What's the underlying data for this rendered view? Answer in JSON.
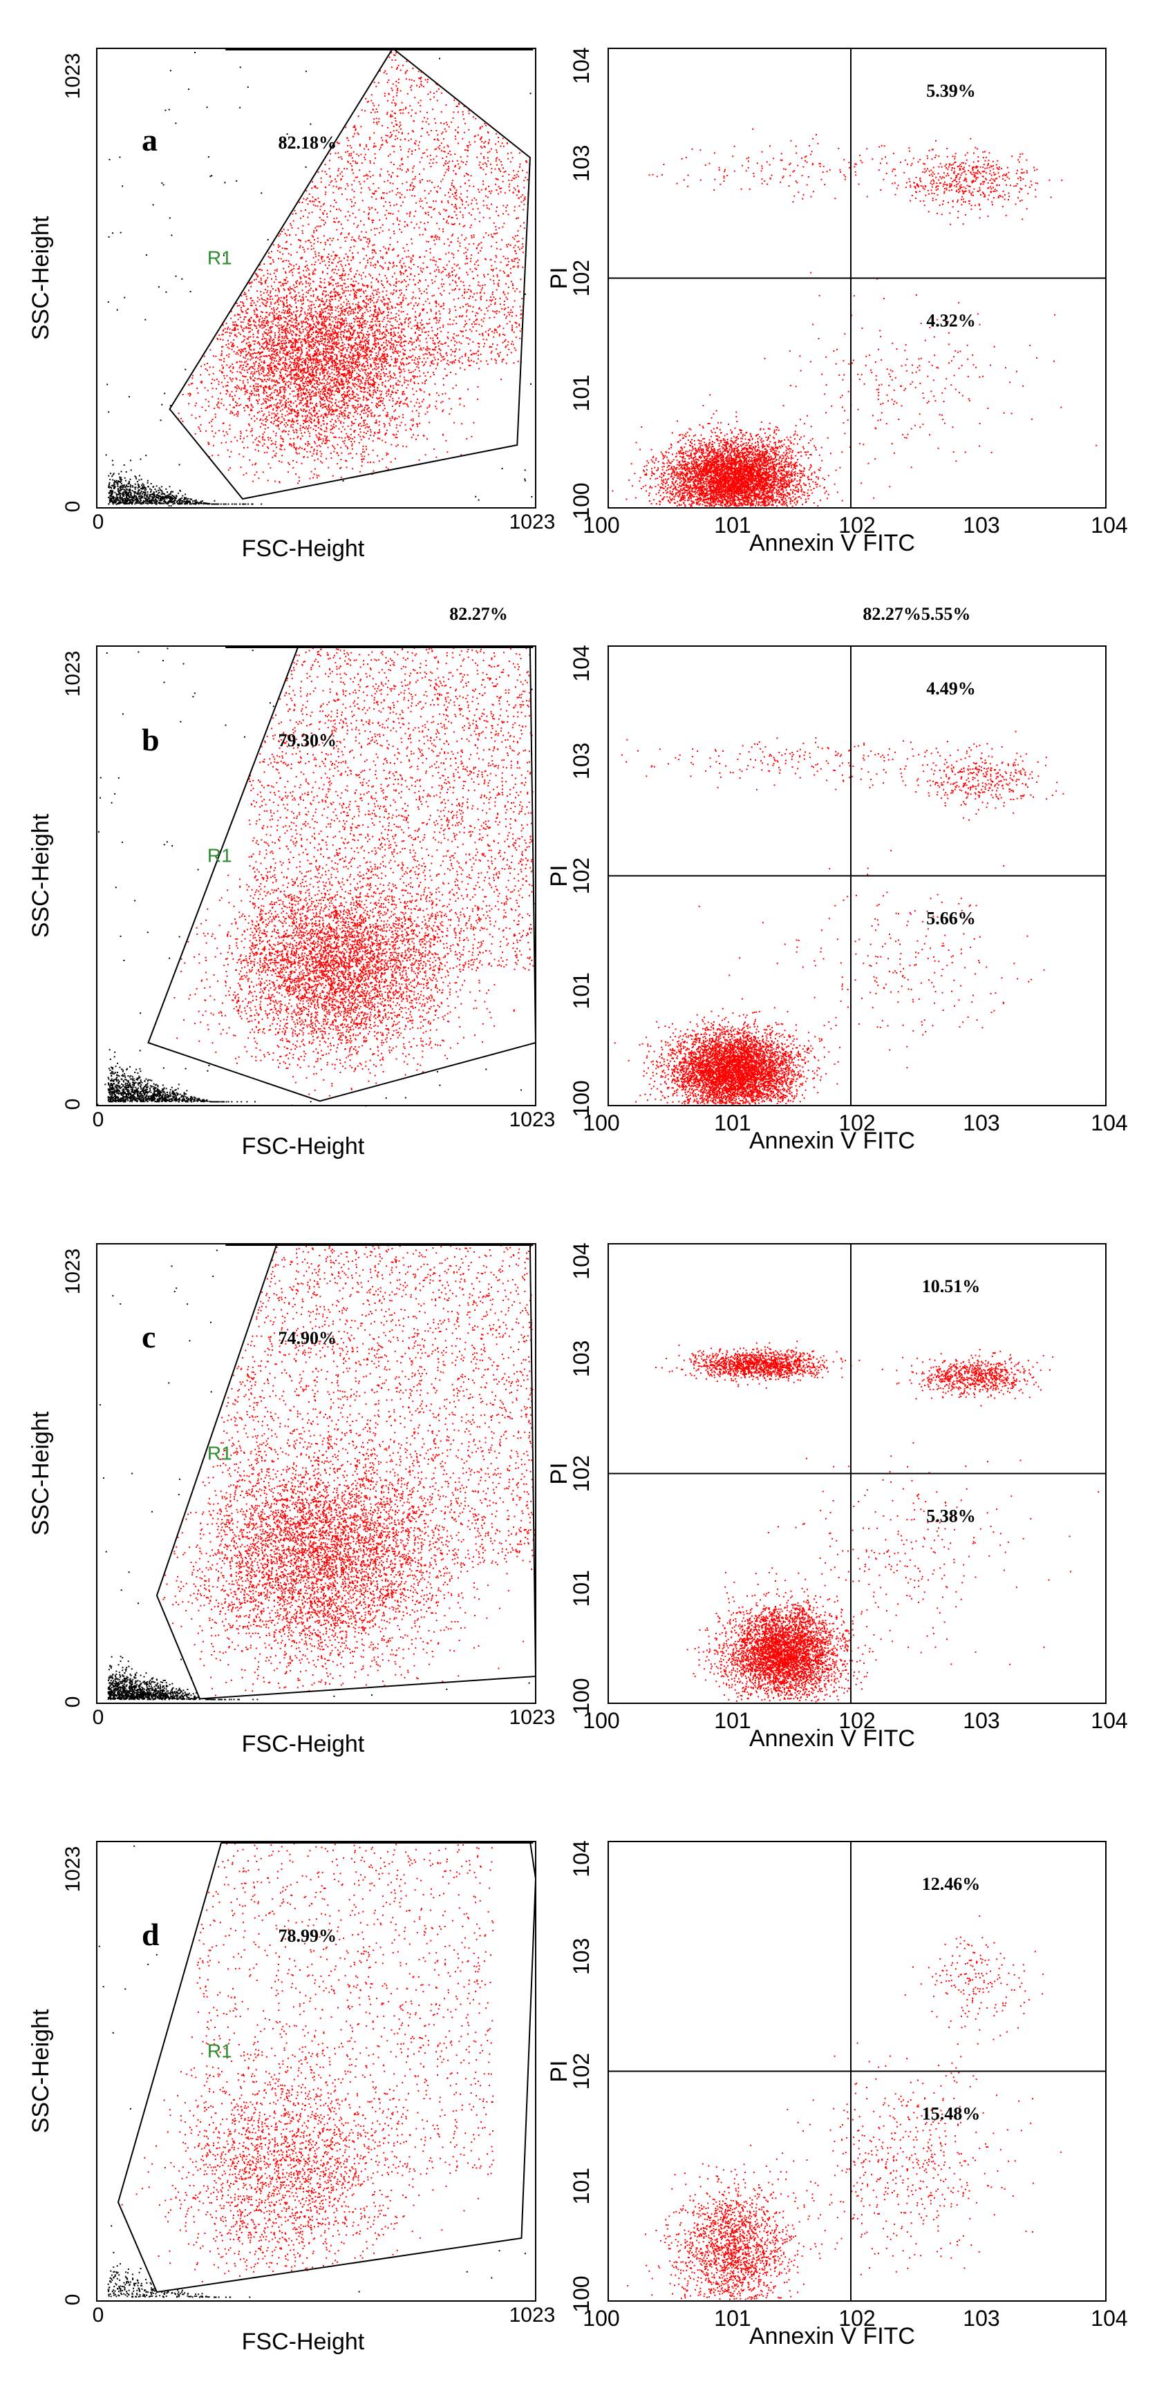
{
  "chart_data": [
    {
      "type": "scatter",
      "panel": "a",
      "plot": "FSC-SSC",
      "xlabel": "FSC-Height",
      "ylabel": "SSC-Height",
      "xlim": [
        0,
        1023
      ],
      "ylim": [
        0,
        1023
      ],
      "xticks": [
        "0",
        "1023"
      ],
      "yticks": [
        "0",
        "1023"
      ],
      "panel_label": "a",
      "gate_name": "R1",
      "gate_percent": "82.18%",
      "gate_polygon": [
        [
          170,
          220
        ],
        [
          690,
          1023
        ],
        [
          1010,
          780
        ],
        [
          980,
          140
        ],
        [
          340,
          20
        ]
      ],
      "population_center": [
        520,
        320
      ],
      "population_spread": [
        240,
        190
      ],
      "event_count": {
        "gated": 9000,
        "debris": 900,
        "outside": 160
      }
    },
    {
      "type": "scatter",
      "panel": "a",
      "plot": "AnnexinV-PI",
      "xlabel": "Annexin V FITC",
      "ylabel": "PI",
      "xscale": "log",
      "yscale": "log",
      "xlim_decades": [
        0,
        4
      ],
      "ylim_decades": [
        0,
        4
      ],
      "xticks": [
        "100",
        "101",
        "102",
        "103",
        "104"
      ],
      "yticks": [
        "100",
        "101",
        "102",
        "103",
        "104"
      ],
      "quadrant_divider": [
        1.95,
        2.0
      ],
      "quadrant_percents": {
        "upper_right": "5.39%",
        "lower_right": "4.32%"
      },
      "header_text": "",
      "populations": [
        {
          "center": [
            1.0,
            0.25
          ],
          "spread": [
            0.55,
            0.35
          ],
          "n": 5500
        },
        {
          "center": [
            2.9,
            2.85
          ],
          "spread": [
            0.5,
            0.25
          ],
          "n": 450
        },
        {
          "center": [
            1.7,
            2.95
          ],
          "spread": [
            1.3,
            0.25
          ],
          "n": 180
        },
        {
          "center": [
            2.4,
            1.1
          ],
          "spread": [
            0.9,
            0.7
          ],
          "n": 220
        }
      ]
    },
    {
      "type": "scatter",
      "panel": "b",
      "plot": "FSC-SSC",
      "xlabel": "FSC-Height",
      "ylabel": "SSC-Height",
      "xlim": [
        0,
        1023
      ],
      "ylim": [
        0,
        1023
      ],
      "xticks": [
        "0",
        "1023"
      ],
      "yticks": [
        "0",
        "1023"
      ],
      "panel_label": "b",
      "gate_name": "R1",
      "gate_percent": "79.30%",
      "header_text": "82.27%",
      "gate_polygon": [
        [
          120,
          140
        ],
        [
          470,
          1023
        ],
        [
          1010,
          1023
        ],
        [
          1023,
          140
        ],
        [
          520,
          10
        ]
      ],
      "population_center": [
        560,
        300
      ],
      "population_spread": [
        230,
        180
      ],
      "event_count": {
        "gated": 8000,
        "debris": 1000,
        "outside": 160
      }
    },
    {
      "type": "scatter",
      "panel": "b",
      "plot": "AnnexinV-PI",
      "xlabel": "Annexin V FITC",
      "ylabel": "PI",
      "xscale": "log",
      "yscale": "log",
      "xlim_decades": [
        0,
        4
      ],
      "ylim_decades": [
        0,
        4
      ],
      "xticks": [
        "100",
        "101",
        "102",
        "103",
        "104"
      ],
      "yticks": [
        "100",
        "101",
        "102",
        "103",
        "104"
      ],
      "quadrant_divider": [
        1.95,
        2.0
      ],
      "quadrant_percents": {
        "upper_right": "4.49%",
        "lower_right": "5.66%"
      },
      "header_text": "82.27%5.55%",
      "populations": [
        {
          "center": [
            1.0,
            0.3
          ],
          "spread": [
            0.5,
            0.35
          ],
          "n": 5200
        },
        {
          "center": [
            3.0,
            2.85
          ],
          "spread": [
            0.45,
            0.25
          ],
          "n": 350
        },
        {
          "center": [
            1.6,
            3.0
          ],
          "spread": [
            1.3,
            0.2
          ],
          "n": 200
        },
        {
          "center": [
            2.4,
            1.2
          ],
          "spread": [
            0.9,
            0.7
          ],
          "n": 220
        }
      ]
    },
    {
      "type": "scatter",
      "panel": "c",
      "plot": "FSC-SSC",
      "xlabel": "FSC-Height",
      "ylabel": "SSC-Height",
      "xlim": [
        0,
        1023
      ],
      "ylim": [
        0,
        1023
      ],
      "xticks": [
        "0",
        "1023"
      ],
      "yticks": [
        "0",
        "1023"
      ],
      "panel_label": "c",
      "gate_name": "R1",
      "gate_percent": "74.90%",
      "gate_polygon": [
        [
          140,
          240
        ],
        [
          420,
          1023
        ],
        [
          1010,
          1023
        ],
        [
          1023,
          60
        ],
        [
          240,
          10
        ]
      ],
      "population_center": [
        520,
        310
      ],
      "population_spread": [
        260,
        210
      ],
      "event_count": {
        "gated": 8500,
        "debris": 1100,
        "outside": 120
      }
    },
    {
      "type": "scatter",
      "panel": "c",
      "plot": "AnnexinV-PI",
      "xlabel": "Annexin V FITC",
      "ylabel": "PI",
      "xscale": "log",
      "yscale": "log",
      "xlim_decades": [
        0,
        4
      ],
      "ylim_decades": [
        0,
        4
      ],
      "xticks": [
        "100",
        "101",
        "102",
        "103",
        "104"
      ],
      "yticks": [
        "100",
        "101",
        "102",
        "103",
        "104"
      ],
      "quadrant_divider": [
        1.95,
        2.0
      ],
      "quadrant_percents": {
        "upper_right": "10.51%",
        "lower_right": "5.38%"
      },
      "header_text": "",
      "populations": [
        {
          "center": [
            1.4,
            0.45
          ],
          "spread": [
            0.45,
            0.4
          ],
          "n": 4000
        },
        {
          "center": [
            1.2,
            2.95
          ],
          "spread": [
            0.5,
            0.12
          ],
          "n": 1300
        },
        {
          "center": [
            2.95,
            2.85
          ],
          "spread": [
            0.45,
            0.15
          ],
          "n": 700
        },
        {
          "center": [
            2.4,
            1.3
          ],
          "spread": [
            0.9,
            0.8
          ],
          "n": 250
        }
      ]
    },
    {
      "type": "scatter",
      "panel": "d",
      "plot": "FSC-SSC",
      "xlabel": "FSC-Height",
      "ylabel": "SSC-Height",
      "xlim": [
        0,
        1023
      ],
      "ylim": [
        0,
        1023
      ],
      "xticks": [
        "0",
        "1023"
      ],
      "yticks": [
        "0",
        "1023"
      ],
      "panel_label": "d",
      "gate_name": "R1",
      "gate_percent": "78.99%",
      "gate_polygon": [
        [
          50,
          220
        ],
        [
          290,
          1020
        ],
        [
          1010,
          1023
        ],
        [
          1023,
          940
        ],
        [
          990,
          140
        ],
        [
          140,
          20
        ]
      ],
      "population_center": [
        440,
        280
      ],
      "population_spread": [
        230,
        200
      ],
      "event_count": {
        "gated": 3600,
        "debris": 260,
        "outside": 60
      }
    },
    {
      "type": "scatter",
      "panel": "d",
      "plot": "AnnexinV-PI",
      "xlabel": "Annexin V FITC",
      "ylabel": "PI",
      "xscale": "log",
      "yscale": "log",
      "xlim_decades": [
        0,
        4
      ],
      "ylim_decades": [
        0,
        4
      ],
      "xticks": [
        "100",
        "101",
        "102",
        "103",
        "104"
      ],
      "yticks": [
        "100",
        "101",
        "102",
        "103",
        "104"
      ],
      "quadrant_divider": [
        1.95,
        2.0
      ],
      "quadrant_percents": {
        "upper_right": "12.46%",
        "lower_right": "15.48%"
      },
      "header_text": "",
      "populations": [
        {
          "center": [
            1.0,
            0.45
          ],
          "spread": [
            0.45,
            0.55
          ],
          "n": 1700
        },
        {
          "center": [
            2.95,
            2.8
          ],
          "spread": [
            0.4,
            0.35
          ],
          "n": 180
        },
        {
          "center": [
            2.4,
            1.2
          ],
          "spread": [
            0.75,
            0.8
          ],
          "n": 500
        }
      ]
    }
  ],
  "colors": {
    "event": "#ff0000",
    "debris": "#000000",
    "axis": "#000000",
    "gate_label": "#2e8b2e"
  }
}
